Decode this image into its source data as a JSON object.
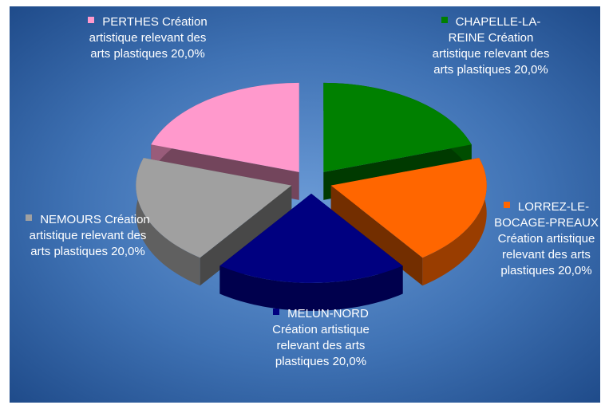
{
  "chart_data": {
    "type": "pie",
    "categories": [
      "CHAPELLE-LA-REINE",
      "LORREZ-LE-BOCAGE-PREAUX",
      "MELUN-NORD",
      "NEMOURS",
      "PERTHES"
    ],
    "series": [
      {
        "name": "Création artistique relevant des arts plastiques",
        "values": [
          20,
          20,
          20,
          20,
          20
        ],
        "value_labels": [
          "20,0%",
          "20,0%",
          "20,0%",
          "20,0%",
          "20,0%"
        ]
      }
    ],
    "colors": [
      "#008000",
      "#ff6600",
      "#000080",
      "#a0a0a0",
      "#ff99cc"
    ]
  }
}
